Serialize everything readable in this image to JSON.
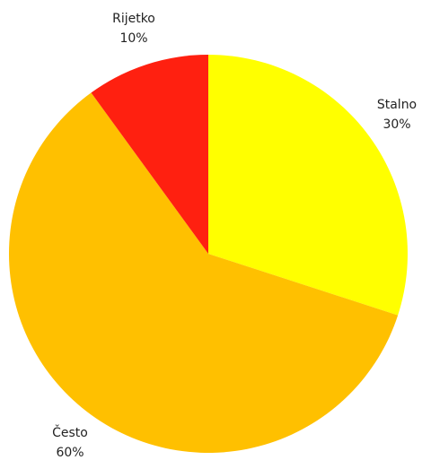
{
  "chart_data": {
    "type": "pie",
    "start_angle_deg": 0,
    "direction": "clockwise",
    "slices": [
      {
        "name": "Stalno",
        "value": 30,
        "value_label": "30%",
        "color": "#FFFF00"
      },
      {
        "name": "Često",
        "value": 60,
        "value_label": "60%",
        "color": "#FFC000"
      },
      {
        "name": "Rijetko",
        "value": 10,
        "value_label": "10%",
        "color": "#FF2010"
      }
    ]
  }
}
